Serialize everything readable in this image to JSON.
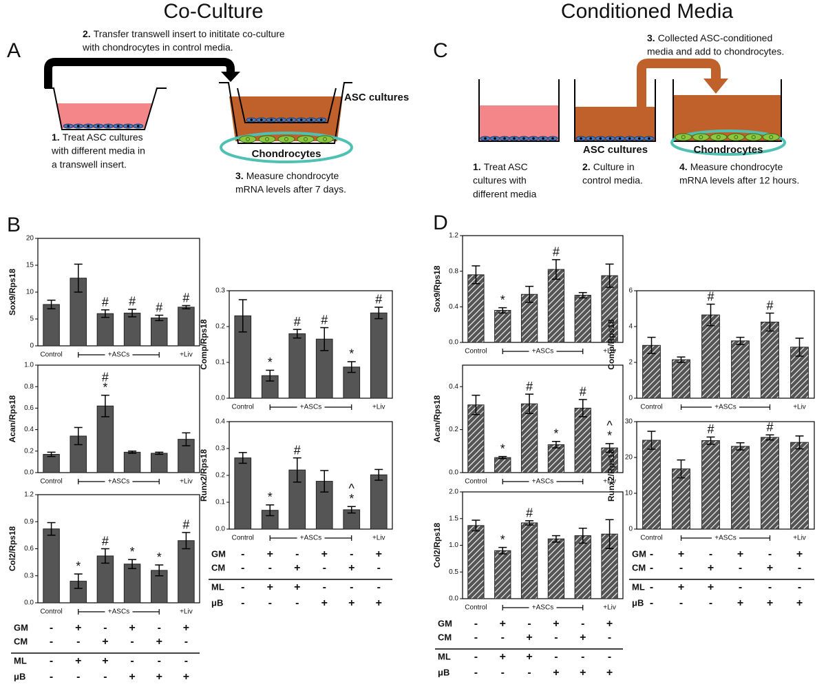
{
  "titles": [
    "Co-Culture",
    "Conditioned Media"
  ],
  "panel_labels": [
    "A",
    "B",
    "C",
    "D"
  ],
  "diagram_A": {
    "steps": [
      {
        "number": "2.",
        "lines": [
          "Transfer transwell insert to inititate co-culture",
          "with chondrocytes in control media."
        ]
      },
      {
        "number": "1.",
        "lines": [
          "Treat ASC cultures",
          "with different media in",
          "a transwell insert."
        ]
      },
      {
        "number": "3.",
        "lines": [
          "Measure chondrocyte",
          "mRNA levels after 7 days."
        ]
      }
    ],
    "labels": [
      "ASC cultures",
      "Chondrocytes"
    ]
  },
  "diagram_C": {
    "steps": [
      {
        "number": "3.",
        "lines": [
          "Collected ASC-conditioned",
          "media and add to chondrocytes."
        ]
      },
      {
        "number": "1.",
        "lines": [
          "Treat ASC",
          "cultures with",
          "different media"
        ]
      },
      {
        "number": "2.",
        "lines": [
          "Culture in",
          "control media."
        ]
      },
      {
        "number": "4.",
        "lines": [
          "Measure chondrocyte",
          "mRNA levels after 12 hours."
        ]
      }
    ],
    "labels": [
      "ASC cultures",
      "Chondrocytes"
    ]
  },
  "condition_table": {
    "rows": [
      {
        "label": "GM",
        "signs": [
          "-",
          "+",
          "-",
          "+",
          "-",
          "+"
        ]
      },
      {
        "label": "CM",
        "signs": [
          "-",
          "-",
          "+",
          "-",
          "+",
          "-"
        ]
      },
      {
        "label": "ML",
        "signs": [
          "-",
          "+",
          "+",
          "-",
          "-",
          "-"
        ]
      },
      {
        "label": "μB",
        "signs": [
          "-",
          "-",
          "-",
          "+",
          "+",
          "+"
        ]
      }
    ]
  },
  "chart_data": [
    {
      "type": "bar",
      "y_label": "Sox9/Rps18",
      "categories": [
        "Control",
        null,
        null,
        null,
        null,
        "+Liv"
      ],
      "group_label": "+ASCs",
      "values": [
        7.7,
        12.6,
        6.0,
        6.1,
        5.2,
        7.2
      ],
      "errors": [
        0.8,
        2.6,
        0.7,
        0.7,
        0.5,
        0.3
      ],
      "annotations": [
        null,
        null,
        [
          "#"
        ],
        [
          "#"
        ],
        [
          "#"
        ],
        [
          "#"
        ]
      ],
      "ylim": [
        0,
        20
      ],
      "yticks": [
        0,
        5,
        10,
        15,
        20
      ],
      "color": "#555555",
      "hatch": false
    },
    {
      "type": "bar",
      "y_label": "Acan/Rps18",
      "categories": [
        "Control",
        null,
        null,
        null,
        null,
        "+Liv"
      ],
      "group_label": "+ASCs",
      "values": [
        0.17,
        0.34,
        0.62,
        0.19,
        0.18,
        0.31
      ],
      "errors": [
        0.02,
        0.08,
        0.1,
        0.01,
        0.01,
        0.06
      ],
      "annotations": [
        null,
        null,
        [
          "#",
          "*"
        ],
        null,
        null,
        null
      ],
      "ylim": [
        0,
        1
      ],
      "yticks": [
        {
          "value": 0,
          "label": "0.0"
        },
        0.2,
        0.4,
        0.6,
        0.8,
        {
          "value": 1,
          "label": "1.0"
        }
      ],
      "color": "#555555",
      "hatch": false
    },
    {
      "type": "bar",
      "y_label": "Col2/Rps18",
      "categories": [
        "Control",
        null,
        null,
        null,
        null,
        "+Liv"
      ],
      "group_label": "+ASCs",
      "values": [
        0.82,
        0.24,
        0.52,
        0.43,
        0.36,
        0.69
      ],
      "errors": [
        0.07,
        0.08,
        0.08,
        0.05,
        0.06,
        0.09
      ],
      "annotations": [
        null,
        [
          "*"
        ],
        [
          "#"
        ],
        [
          "*"
        ],
        [
          "*"
        ],
        [
          "#"
        ]
      ],
      "ylim": [
        0,
        1.2
      ],
      "yticks": [
        {
          "value": 0,
          "label": "0.0"
        },
        0.3,
        0.6,
        0.9,
        1.2
      ],
      "color": "#555555",
      "hatch": false
    },
    {
      "type": "bar",
      "y_label": "Comp/Rps18",
      "categories": [
        "Control",
        null,
        null,
        null,
        null,
        "+Liv"
      ],
      "group_label": "+ASCs",
      "values": [
        0.23,
        0.063,
        0.18,
        0.165,
        0.087,
        0.238
      ],
      "errors": [
        0.045,
        0.015,
        0.012,
        0.032,
        0.015,
        0.016
      ],
      "annotations": [
        null,
        [
          "*"
        ],
        [
          "#"
        ],
        [
          "#"
        ],
        [
          "*"
        ],
        [
          "#"
        ]
      ],
      "ylim": [
        0,
        0.3
      ],
      "yticks": [
        {
          "value": 0,
          "label": "0.0"
        },
        0.1,
        0.2,
        0.3
      ],
      "color": "#555555",
      "hatch": false
    },
    {
      "type": "bar",
      "y_label": "Runx2/Rps18",
      "categories": [
        "Control",
        null,
        null,
        null,
        null,
        "+Liv"
      ],
      "group_label": "+ASCs",
      "values": [
        0.265,
        0.07,
        0.22,
        0.178,
        0.072,
        0.202
      ],
      "errors": [
        0.02,
        0.02,
        0.045,
        0.04,
        0.012,
        0.02
      ],
      "annotations": [
        null,
        [
          "*"
        ],
        [
          "#"
        ],
        null,
        [
          "^",
          "*"
        ],
        null
      ],
      "ylim": [
        0,
        0.4
      ],
      "yticks": [
        {
          "value": 0,
          "label": "0.0"
        },
        0.1,
        0.2,
        0.3,
        0.4
      ],
      "color": "#555555",
      "hatch": false
    },
    {
      "type": "bar",
      "y_label": "Sox9/Rps18",
      "categories": [
        "Control",
        null,
        null,
        null,
        null,
        "+Liv"
      ],
      "group_label": "+ASCs",
      "values": [
        0.76,
        0.36,
        0.54,
        0.82,
        0.53,
        0.75
      ],
      "errors": [
        0.1,
        0.03,
        0.09,
        0.11,
        0.03,
        0.13
      ],
      "annotations": [
        null,
        [
          "*"
        ],
        null,
        [
          "#"
        ],
        null,
        null
      ],
      "ylim": [
        0,
        1.2
      ],
      "yticks": [
        {
          "value": 0,
          "label": "0.0"
        },
        0.4,
        0.8,
        1.2
      ],
      "color": "#555555",
      "hatch": true
    },
    {
      "type": "bar",
      "y_label": "Acan/Rps18",
      "categories": [
        "Control",
        null,
        null,
        null,
        null,
        "+Liv"
      ],
      "group_label": "+ASCs",
      "values": [
        0.315,
        0.07,
        0.32,
        0.13,
        0.3,
        0.115
      ],
      "errors": [
        0.045,
        0.005,
        0.045,
        0.015,
        0.04,
        0.02
      ],
      "annotations": [
        null,
        [
          "*"
        ],
        [
          "#"
        ],
        [
          "*"
        ],
        [
          "#"
        ],
        [
          "^",
          "*"
        ]
      ],
      "ylim": [
        0,
        0.5
      ],
      "yticks": [
        {
          "value": 0,
          "label": "0.0"
        },
        0.2,
        0.4
      ],
      "color": "#555555",
      "hatch": true
    },
    {
      "type": "bar",
      "y_label": "Col2/Rps18",
      "categories": [
        "Control",
        null,
        null,
        null,
        null,
        "+Liv"
      ],
      "group_label": "+ASCs",
      "values": [
        1.37,
        0.9,
        1.42,
        1.12,
        1.18,
        1.21
      ],
      "errors": [
        0.1,
        0.06,
        0.04,
        0.06,
        0.14,
        0.27
      ],
      "annotations": [
        null,
        [
          "*"
        ],
        [
          "#"
        ],
        null,
        null,
        null
      ],
      "ylim": [
        0,
        2
      ],
      "yticks": [
        {
          "value": 0,
          "label": "0.0"
        },
        0.5,
        {
          "value": 1,
          "label": "1.0"
        },
        1.5,
        {
          "value": 2,
          "label": "2.0"
        }
      ],
      "color": "#555555",
      "hatch": true
    },
    {
      "type": "bar",
      "y_label": "Comp/Rps18",
      "categories": [
        "Control",
        null,
        null,
        null,
        null,
        "+Liv"
      ],
      "group_label": "+ASCs",
      "values": [
        2.95,
        2.15,
        4.65,
        3.2,
        4.25,
        2.85
      ],
      "errors": [
        0.45,
        0.15,
        0.6,
        0.2,
        0.5,
        0.5
      ],
      "annotations": [
        null,
        null,
        [
          "#"
        ],
        null,
        [
          "#"
        ],
        null
      ],
      "ylim": [
        0,
        6
      ],
      "yticks": [
        0,
        2,
        4,
        6
      ],
      "color": "#555555",
      "hatch": true
    },
    {
      "type": "bar",
      "y_label": "Runx2/Rps18",
      "categories": [
        "Control",
        null,
        null,
        null,
        null,
        "+Liv"
      ],
      "group_label": "+ASCs",
      "values": [
        24.8,
        16.8,
        24.7,
        23.1,
        25.6,
        24.2
      ],
      "errors": [
        2.5,
        2.5,
        1,
        1,
        0.7,
        1.8
      ],
      "annotations": [
        null,
        null,
        [
          "#"
        ],
        null,
        [
          "#"
        ],
        null
      ],
      "ylim": [
        0,
        30
      ],
      "yticks": [
        0,
        10,
        20,
        30
      ],
      "color": "#555555",
      "hatch": true
    }
  ]
}
